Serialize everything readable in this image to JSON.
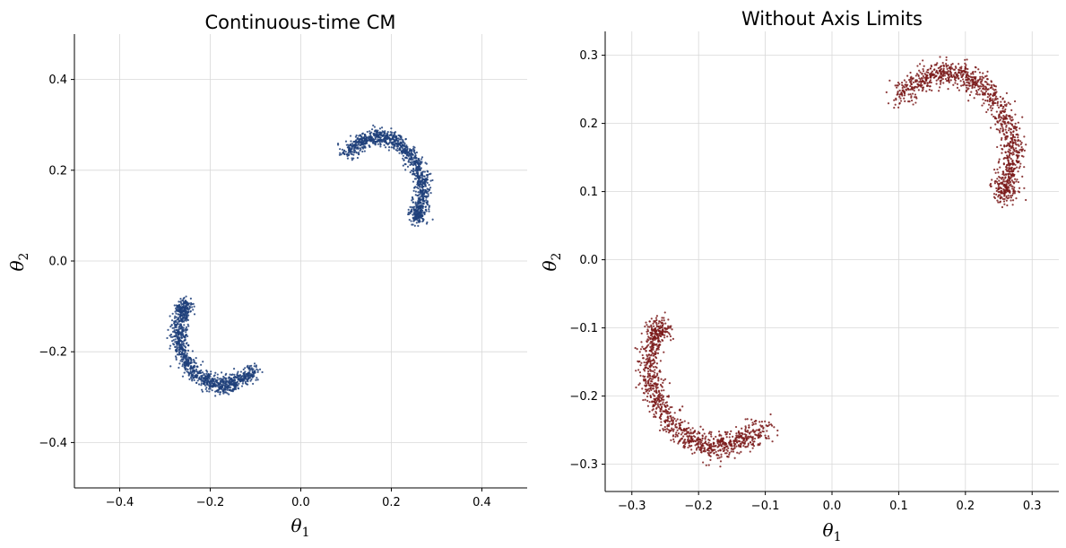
{
  "chart_data": [
    {
      "type": "scatter",
      "title": "Continuous-time CM",
      "xlabel": "θ1",
      "ylabel": "θ2",
      "xlim": [
        -0.5,
        0.5
      ],
      "ylim": [
        -0.5,
        0.5
      ],
      "xticks": [
        -0.4,
        -0.2,
        0.0,
        0.2,
        0.4
      ],
      "xtick_labels": [
        "−0.4",
        "−0.2",
        "0.0",
        "0.2",
        "0.4"
      ],
      "yticks": [
        -0.4,
        -0.2,
        0.0,
        0.2,
        0.4
      ],
      "ytick_labels": [
        "−0.4",
        "−0.2",
        "0.0",
        "0.2",
        "0.4"
      ],
      "grid": true,
      "color": "#1f3f7a",
      "series": [
        {
          "points": [
            [
              0.1,
              0.235
            ],
            [
              0.12,
              0.255
            ],
            [
              0.14,
              0.265
            ],
            [
              0.16,
              0.272
            ],
            [
              0.18,
              0.275
            ],
            [
              0.2,
              0.27
            ],
            [
              0.22,
              0.258
            ],
            [
              0.24,
              0.24
            ],
            [
              0.255,
              0.215
            ],
            [
              0.265,
              0.19
            ],
            [
              0.27,
              0.165
            ],
            [
              0.268,
              0.14
            ],
            [
              0.262,
              0.115
            ],
            [
              0.258,
              0.1
            ],
            [
              -0.1,
              -0.24
            ],
            [
              -0.12,
              -0.255
            ],
            [
              -0.14,
              -0.265
            ],
            [
              -0.16,
              -0.272
            ],
            [
              -0.18,
              -0.275
            ],
            [
              -0.2,
              -0.27
            ],
            [
              -0.22,
              -0.258
            ],
            [
              -0.24,
              -0.24
            ],
            [
              -0.255,
              -0.215
            ],
            [
              -0.265,
              -0.19
            ],
            [
              -0.27,
              -0.165
            ],
            [
              -0.268,
              -0.14
            ],
            [
              -0.262,
              -0.115
            ],
            [
              -0.258,
              -0.1
            ]
          ]
        }
      ]
    },
    {
      "type": "scatter",
      "title": "Without Axis Limits",
      "xlabel": "θ1",
      "ylabel": "θ2",
      "xlim": [
        -0.34,
        0.34
      ],
      "ylim": [
        -0.34,
        0.335
      ],
      "xticks": [
        -0.3,
        -0.2,
        -0.1,
        0.0,
        0.1,
        0.2,
        0.3
      ],
      "xtick_labels": [
        "−0.3",
        "−0.2",
        "−0.1",
        "0.0",
        "0.1",
        "0.2",
        "0.3"
      ],
      "yticks": [
        -0.3,
        -0.2,
        -0.1,
        0.0,
        0.1,
        0.2,
        0.3
      ],
      "ytick_labels": [
        "−0.3",
        "−0.2",
        "−0.1",
        "0.0",
        "0.1",
        "0.2",
        "0.3"
      ],
      "grid": true,
      "color": "#7a1a1a",
      "series": [
        {
          "points": [
            [
              0.1,
              0.24
            ],
            [
              0.12,
              0.258
            ],
            [
              0.14,
              0.266
            ],
            [
              0.16,
              0.272
            ],
            [
              0.18,
              0.274
            ],
            [
              0.2,
              0.27
            ],
            [
              0.22,
              0.258
            ],
            [
              0.24,
              0.24
            ],
            [
              0.255,
              0.215
            ],
            [
              0.265,
              0.19
            ],
            [
              0.272,
              0.165
            ],
            [
              0.27,
              0.14
            ],
            [
              0.262,
              0.115
            ],
            [
              0.258,
              0.1
            ],
            [
              -0.1,
              -0.245
            ],
            [
              -0.12,
              -0.258
            ],
            [
              -0.14,
              -0.266
            ],
            [
              -0.16,
              -0.272
            ],
            [
              -0.18,
              -0.274
            ],
            [
              -0.2,
              -0.27
            ],
            [
              -0.22,
              -0.258
            ],
            [
              -0.24,
              -0.24
            ],
            [
              -0.258,
              -0.215
            ],
            [
              -0.268,
              -0.19
            ],
            [
              -0.275,
              -0.165
            ],
            [
              -0.272,
              -0.14
            ],
            [
              -0.265,
              -0.115
            ],
            [
              -0.26,
              -0.1
            ]
          ]
        }
      ]
    }
  ]
}
